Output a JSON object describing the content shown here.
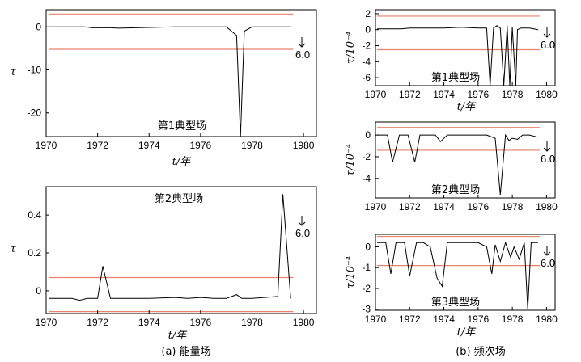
{
  "captions": [
    "(a) 能量场",
    "(b) 频次场"
  ],
  "colors": {
    "series": "#000000",
    "threshold": "#e8826a",
    "frame": "#000000"
  },
  "chart_data": [
    {
      "type": "line",
      "title": "第1典型场",
      "xlabel": "t/年",
      "ylabel": "τ",
      "xlim": [
        1970,
        1980.5
      ],
      "ylim": [
        -25.5,
        4.0
      ],
      "xticks": [
        1970,
        1972,
        1974,
        1976,
        1978,
        1980
      ],
      "yticks": [
        0,
        -10,
        -20
      ],
      "thresholds": [
        3.0,
        -5.2
      ],
      "annotation": {
        "label": "6.0",
        "x": 1979.6,
        "y": -1.5
      },
      "series": [
        {
          "x": [
            1970.1,
            1971.5,
            1971.8,
            1972.5,
            1972.8,
            1975.0,
            1977.0,
            1977.4,
            1977.55,
            1977.7,
            1978.0,
            1979.5
          ],
          "y": [
            0,
            0,
            -0.2,
            -0.2,
            -0.3,
            0,
            0,
            -2,
            -25.5,
            -1,
            0,
            0
          ]
        }
      ]
    },
    {
      "type": "line",
      "title": "第2典型场",
      "xlabel": "t/年",
      "ylabel": "τ",
      "xlim": [
        1970,
        1980.5
      ],
      "ylim": [
        -0.12,
        0.55
      ],
      "xticks": [
        1970,
        1972,
        1974,
        1976,
        1978,
        1980
      ],
      "yticks": [
        0.4,
        0.2,
        0
      ],
      "thresholds": [
        0.07,
        -0.11
      ],
      "annotation": {
        "label": "6.0",
        "x": 1979.5,
        "y": 0.38
      },
      "series": [
        {
          "x": [
            1970.1,
            1971.0,
            1971.3,
            1971.6,
            1972.0,
            1972.2,
            1972.5,
            1973.0,
            1974.0,
            1975.0,
            1975.5,
            1976.0,
            1976.5,
            1977.0,
            1977.4,
            1977.6,
            1978.0,
            1979.0,
            1979.2,
            1979.5
          ],
          "y": [
            -0.04,
            -0.04,
            -0.05,
            -0.04,
            -0.04,
            0.13,
            -0.04,
            -0.04,
            -0.04,
            -0.035,
            -0.04,
            -0.035,
            -0.04,
            -0.04,
            -0.02,
            -0.04,
            -0.04,
            -0.03,
            0.51,
            -0.04
          ]
        }
      ]
    },
    {
      "type": "line",
      "xlabel": "t/年",
      "ylabel": "τ/10⁻⁴",
      "annotation": {
        "label": "6.0",
        "x": 1979.5,
        "y": 0
      },
      "title": "第1典型场",
      "xlim": [
        1970,
        1980.5
      ],
      "ylim": [
        -7.0,
        2.5
      ],
      "xticks": [
        1970,
        1972,
        1974,
        1976,
        1978,
        1980
      ],
      "yticks": [
        2,
        0,
        -2,
        -4,
        -6
      ],
      "thresholds": [
        1.7,
        -2.5
      ],
      "series": [
        {
          "x": [
            1970.1,
            1971.5,
            1972.0,
            1973.0,
            1974.0,
            1975.0,
            1976.0,
            1976.5,
            1976.7,
            1976.9,
            1977.1,
            1977.3,
            1977.5,
            1977.7,
            1977.85,
            1978.0,
            1978.2,
            1978.3,
            1978.5,
            1979.0,
            1979.5
          ],
          "y": [
            0.1,
            0.1,
            0.2,
            0.2,
            0.2,
            0.3,
            0.2,
            0.2,
            -7,
            0.2,
            0.5,
            0.2,
            -7,
            0.5,
            -7,
            0.3,
            -7,
            0,
            0.2,
            0.2,
            0
          ]
        }
      ]
    },
    {
      "type": "line",
      "xlabel": "t/年",
      "ylabel": "τ/10⁻⁴",
      "annotation": {
        "label": "6.0",
        "x": 1979.5,
        "y": -0.3
      },
      "title": "第2典型场",
      "xlim": [
        1970,
        1980.5
      ],
      "ylim": [
        -5.8,
        1.2
      ],
      "xticks": [
        1970,
        1972,
        1974,
        1976,
        1978,
        1980
      ],
      "yticks": [
        0,
        -2,
        -4
      ],
      "thresholds": [
        0.7,
        -1.4
      ],
      "series": [
        {
          "x": [
            1970.1,
            1970.7,
            1971.0,
            1971.4,
            1971.9,
            1972.3,
            1972.6,
            1973.0,
            1973.5,
            1973.8,
            1974.2,
            1975.0,
            1976.0,
            1976.5,
            1977.0,
            1977.3,
            1977.6,
            1977.8,
            1978.0,
            1978.3,
            1978.6,
            1979.0,
            1979.5
          ],
          "y": [
            0,
            0,
            -2.5,
            0,
            0,
            -2.5,
            0,
            0,
            0,
            -0.6,
            0,
            0,
            0,
            0,
            -0.3,
            -5.5,
            0,
            -0.5,
            -0.3,
            -0.4,
            0,
            0,
            -0.2
          ]
        }
      ]
    },
    {
      "type": "line",
      "xlabel": "t/年",
      "ylabel": "τ/10⁻⁴",
      "annotation": {
        "label": "6.0",
        "x": 1979.5,
        "y": -0.1
      },
      "title": "第3典型场",
      "xlim": [
        1970,
        1980.5
      ],
      "ylim": [
        -3.05,
        0.6
      ],
      "xticks": [
        1970,
        1972,
        1974,
        1976,
        1978,
        1980
      ],
      "yticks": [
        0,
        -1,
        -2,
        -3
      ],
      "thresholds": [
        0.5,
        -0.9
      ],
      "series": [
        {
          "x": [
            1970.1,
            1970.6,
            1970.9,
            1971.2,
            1971.7,
            1972.0,
            1972.4,
            1972.8,
            1973.2,
            1973.6,
            1973.9,
            1974.2,
            1975.0,
            1976.0,
            1976.5,
            1976.8,
            1977.0,
            1977.3,
            1977.6,
            1977.9,
            1978.1,
            1978.4,
            1978.7,
            1978.9,
            1979.1,
            1979.5
          ],
          "y": [
            0.2,
            0.2,
            -1.3,
            0.2,
            0.2,
            -1.4,
            0.2,
            0.2,
            0,
            -1.5,
            -1.9,
            0.2,
            0.2,
            0.2,
            0,
            -1.3,
            0.1,
            -0.7,
            0.2,
            -0.5,
            0,
            -0.6,
            0.2,
            -3.0,
            0.2,
            0.2
          ]
        }
      ]
    }
  ]
}
